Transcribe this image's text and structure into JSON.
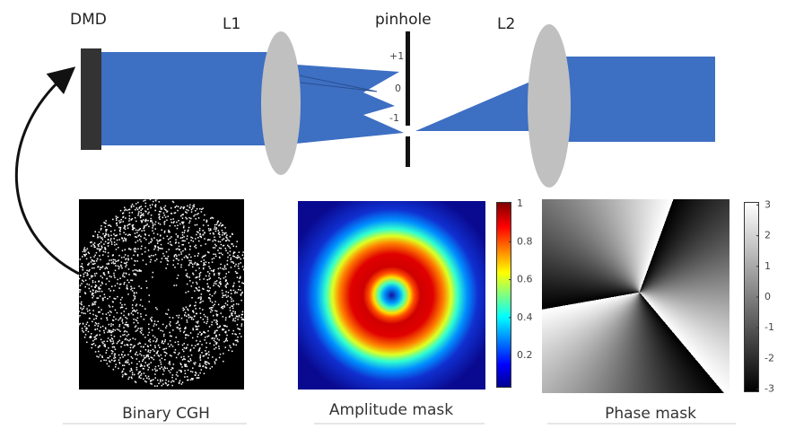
{
  "labels": {
    "dmd": "DMD",
    "lens1": "L1",
    "pinhole": "pinhole",
    "lens2": "L2"
  },
  "orders": {
    "plus": "+1",
    "zero": "0",
    "minus": "-1"
  },
  "panels": {
    "cgh": "Binary CGH",
    "amplitude": "Amplitude mask",
    "phase": "Phase mask"
  },
  "colorbars": {
    "amplitude": {
      "lim": [
        0.03,
        1.01
      ],
      "ticks": [
        1,
        0.8,
        0.6,
        0.4,
        0.2
      ]
    },
    "phase": {
      "lim": [
        -3.1,
        3.1
      ],
      "ticks": [
        3,
        2,
        1,
        0,
        -1,
        -2,
        -3
      ]
    }
  }
}
